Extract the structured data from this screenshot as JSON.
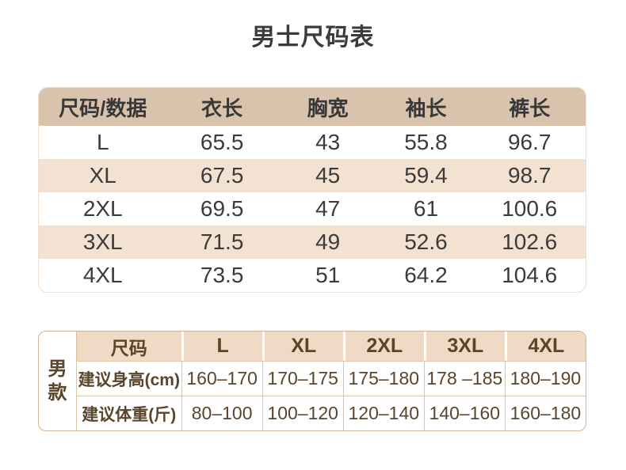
{
  "title": "男士尺码表",
  "colors": {
    "page_bg": "#ffffff",
    "table1_header_bg": "#d9c3ad",
    "table1_stripe_bg": "#f3e2d2",
    "table1_border": "#f0ddce",
    "table1_text": "#3b3b3b",
    "table2_header_bg": "#eedac5",
    "table2_border": "#dcc6ab",
    "table2_text": "#5a452c"
  },
  "chart_data": [
    {
      "type": "table",
      "title": "男士尺码表",
      "columns": [
        "尺码/数据",
        "衣长",
        "胸宽",
        "袖长",
        "裤长"
      ],
      "rows": [
        [
          "L",
          "65.5",
          "43",
          "55.8",
          "96.7"
        ],
        [
          "XL",
          "67.5",
          "45",
          "59.4",
          "98.7"
        ],
        [
          "2XL",
          "69.5",
          "47",
          "61",
          "100.6"
        ],
        [
          "3XL",
          "71.5",
          "49",
          "52.6",
          "102.6"
        ],
        [
          "4XL",
          "73.5",
          "51",
          "64.2",
          "104.6"
        ]
      ],
      "layout": {
        "zebra_stripes": true,
        "header_fill": "#d9c3ad"
      }
    },
    {
      "type": "table",
      "group_label": "男款",
      "columns": [
        "尺码",
        "L",
        "XL",
        "2XL",
        "3XL",
        "4XL"
      ],
      "rows": [
        [
          "建议身高(cm)",
          "160–170",
          "170–175",
          "175–180",
          "178 –185",
          "180–190"
        ],
        [
          "建议体重(斤)",
          "80–100",
          "100–120",
          "120–140",
          "140–160",
          "160–180"
        ]
      ],
      "layout": {
        "grid_lines": true,
        "header_fill": "#eedac5"
      }
    }
  ]
}
